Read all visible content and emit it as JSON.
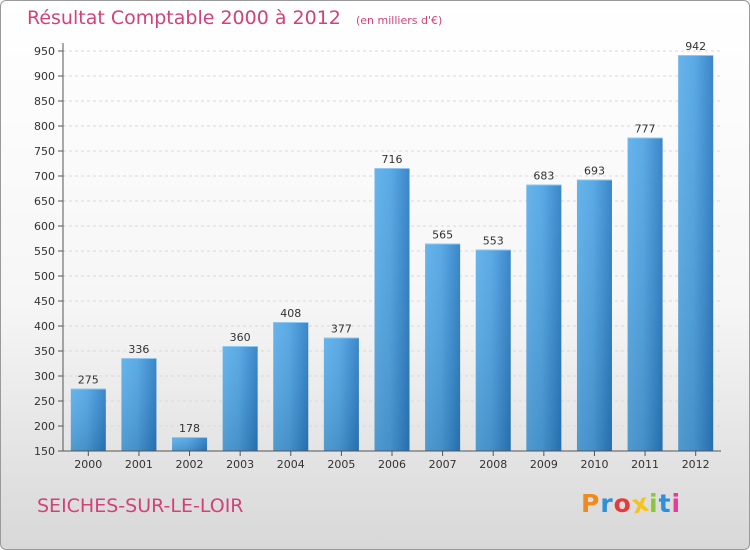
{
  "chart_data": {
    "type": "bar",
    "title": "Résultat Comptable 2000 à 2012",
    "subtitle": "(en milliers d'€)",
    "categories": [
      "2000",
      "2001",
      "2002",
      "2003",
      "2004",
      "2005",
      "2006",
      "2007",
      "2008",
      "2009",
      "2010",
      "2011",
      "2012"
    ],
    "values": [
      275,
      336,
      178,
      360,
      408,
      377,
      716,
      565,
      553,
      683,
      693,
      777,
      942
    ],
    "ylim": [
      150,
      950
    ],
    "yticks": [
      150,
      200,
      250,
      300,
      350,
      400,
      450,
      500,
      550,
      600,
      650,
      700,
      750,
      800,
      850,
      900,
      950
    ],
    "grid": true,
    "bar_color": "#3a8fd4"
  },
  "footer": {
    "commune": "SEICHES-SUR-LE-LOIR"
  },
  "logo": {
    "text": "Proxiti",
    "letters": [
      "P",
      "r",
      "o",
      "x",
      "i",
      "t",
      "i"
    ],
    "colors": [
      "#f08a1c",
      "#2f8fd8",
      "#e83a3a",
      "#f3c320",
      "#8cc63f",
      "#2f8fd8",
      "#e83a9a"
    ]
  }
}
